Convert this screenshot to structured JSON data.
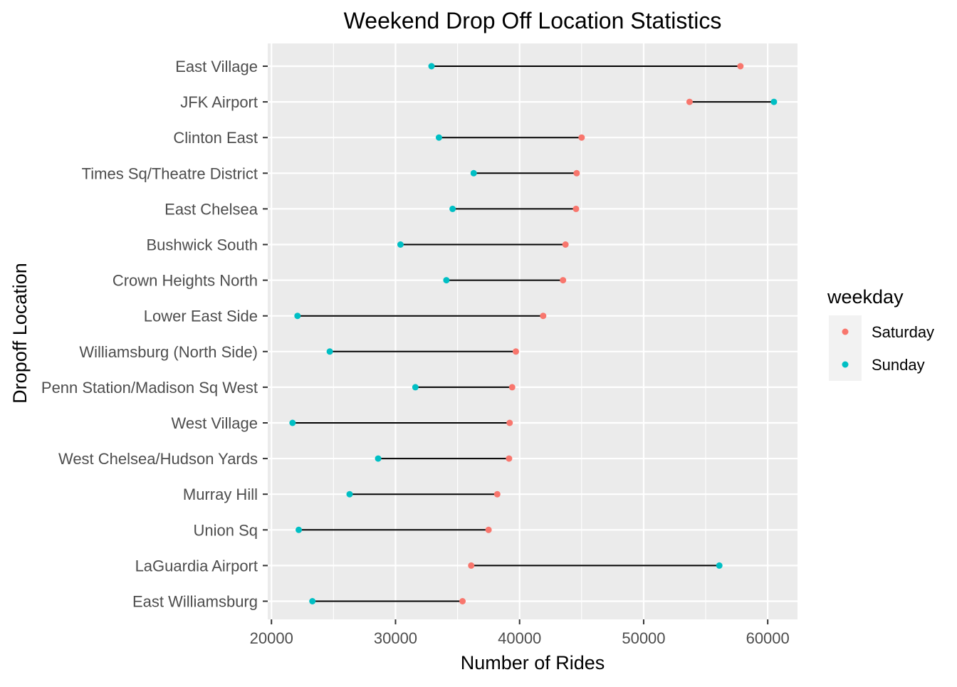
{
  "chart_data": {
    "type": "scatter",
    "subtype": "dumbbell",
    "title": "Weekend Drop Off Location Statistics",
    "xlabel": "Number of Rides",
    "ylabel": "Dropoff Location",
    "xlim": [
      19700,
      62400
    ],
    "xticks": [
      20000,
      30000,
      40000,
      50000,
      60000
    ],
    "xtick_labels": [
      "20000",
      "30000",
      "40000",
      "50000",
      "60000"
    ],
    "grid": true,
    "legend_position": "right",
    "legend": {
      "title": "weekday",
      "entries": [
        {
          "label": "Saturday",
          "color": "#F8766D"
        },
        {
          "label": "Sunday",
          "color": "#00BFC4"
        }
      ]
    },
    "categories": [
      "East Village",
      "JFK Airport",
      "Clinton East",
      "Times Sq/Theatre District",
      "East Chelsea",
      "Bushwick South",
      "Crown Heights North",
      "Lower East Side",
      "Williamsburg (North Side)",
      "Penn Station/Madison Sq West",
      "West Village",
      "West Chelsea/Hudson Yards",
      "Murray Hill",
      "Union Sq",
      "LaGuardia Airport",
      "East Williamsburg"
    ],
    "series": [
      {
        "name": "Saturday",
        "color": "#F8766D",
        "values": [
          57800,
          53700,
          45000,
          44600,
          44550,
          43700,
          43500,
          41900,
          39700,
          39400,
          39200,
          39150,
          38200,
          37500,
          36100,
          35400
        ]
      },
      {
        "name": "Sunday",
        "color": "#00BFC4",
        "values": [
          32900,
          60500,
          33500,
          36300,
          34600,
          30400,
          34100,
          22100,
          24700,
          31600,
          21700,
          28600,
          26300,
          22200,
          56100,
          23300
        ]
      }
    ]
  },
  "colors": {
    "panel_background": "#EBEBEB",
    "grid": "#FFFFFF",
    "segment": "#000000",
    "tick_text": "#4D4D4D",
    "legend_key_background": "#F2F2F2"
  }
}
